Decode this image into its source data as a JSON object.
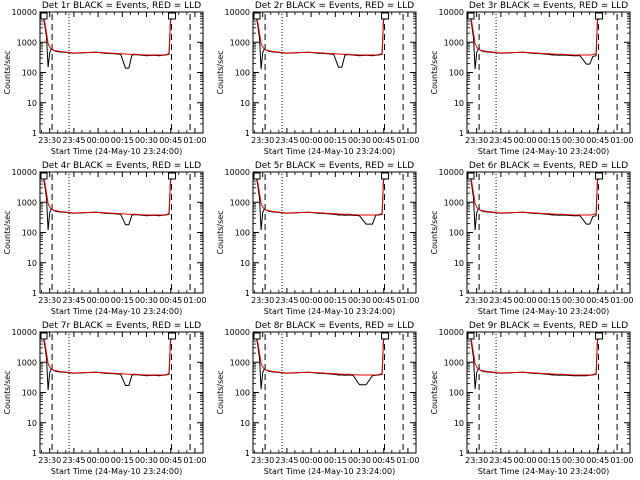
{
  "window": {
    "background": "#ffffff",
    "foreground": "#000000"
  },
  "colors": {
    "events": "#000000",
    "lld": "#e00000"
  },
  "chart_data": {
    "type": "line",
    "layout": "3x3 grid of panels",
    "scale": {
      "x": "time",
      "y": "log"
    },
    "ylim": [
      1,
      10000
    ],
    "yticks": [
      "1",
      "10",
      "100",
      "1000",
      "10000"
    ],
    "xlim": [
      "23:24",
      "01:05"
    ],
    "xticks": [
      "23:30",
      "23:45",
      "00:00",
      "00:15",
      "00:30",
      "00:45",
      "01:00"
    ],
    "xtick_positions_min": [
      6,
      21,
      36,
      51,
      66,
      81,
      96
    ],
    "xlabel": "Start Time (24-May-10 23:24:00)",
    "ylabel": "Counts/sec",
    "legend": "in title",
    "vertical_markers": [
      {
        "style": "dashed",
        "t_min": 7.5
      },
      {
        "style": "dotted",
        "t_min": 18
      },
      {
        "style": "dashed",
        "t_min": 81.5
      },
      {
        "style": "dashed",
        "t_min": 93
      }
    ],
    "series_x_min": [
      0,
      1,
      2,
      3,
      4,
      5,
      6,
      7,
      8,
      10,
      12,
      15,
      18,
      21,
      25,
      30,
      35,
      40,
      45,
      50,
      53,
      55,
      57,
      59,
      62,
      66,
      70,
      74,
      76,
      78,
      80,
      81,
      82
    ],
    "panels": [
      {
        "title": "Det 1r BLACK = Events, RED = LLD",
        "series": [
          {
            "name": "Events",
            "color": "#000000",
            "values": [
              9500,
              9000,
              7500,
              3500,
              1500,
              150,
              450,
              600,
              560,
              500,
              480,
              470,
              450,
              430,
              440,
              460,
              470,
              430,
              420,
              400,
              140,
              140,
              380,
              390,
              380,
              360,
              370,
              360,
              370,
              380,
              400,
              8000,
              9500
            ]
          },
          {
            "name": "LLD",
            "color": "#e00000",
            "values": [
              9800,
              9500,
              8000,
              4500,
              2000,
              900,
              700,
              600,
              560,
              520,
              500,
              480,
              460,
              440,
              450,
              460,
              470,
              450,
              430,
              420,
              410,
              400,
              400,
              400,
              390,
              380,
              380,
              380,
              380,
              390,
              420,
              9000,
              9800
            ]
          }
        ]
      },
      {
        "title": "Det 2r BLACK = Events, RED = LLD",
        "series": [
          {
            "name": "Events",
            "color": "#000000",
            "values": [
              9500,
              9000,
              7500,
              3500,
              1400,
              130,
              450,
              600,
              560,
              500,
              480,
              470,
              450,
              430,
              440,
              460,
              470,
              430,
              420,
              400,
              150,
              150,
              380,
              390,
              380,
              360,
              370,
              360,
              370,
              380,
              400,
              8000,
              9500
            ]
          },
          {
            "name": "LLD",
            "color": "#e00000",
            "values": [
              9800,
              9500,
              8000,
              4500,
              2000,
              900,
              700,
              600,
              560,
              520,
              500,
              480,
              460,
              440,
              450,
              460,
              470,
              450,
              430,
              420,
              410,
              400,
              400,
              400,
              390,
              380,
              380,
              380,
              380,
              390,
              420,
              9000,
              9800
            ]
          }
        ]
      },
      {
        "title": "Det 3r BLACK = Events, RED = LLD",
        "series": [
          {
            "name": "Events",
            "color": "#000000",
            "values": [
              9500,
              9000,
              7500,
              3500,
              1400,
              130,
              450,
              600,
              560,
              500,
              480,
              470,
              450,
              430,
              440,
              460,
              470,
              430,
              420,
              400,
              380,
              380,
              370,
              380,
              370,
              360,
              360,
              190,
              190,
              340,
              360,
              8000,
              9500
            ]
          },
          {
            "name": "LLD",
            "color": "#e00000",
            "values": [
              9800,
              9500,
              8000,
              4500,
              2000,
              900,
              700,
              600,
              560,
              520,
              500,
              480,
              460,
              440,
              450,
              460,
              470,
              450,
              430,
              420,
              410,
              400,
              400,
              400,
              390,
              380,
              380,
              380,
              380,
              390,
              420,
              9000,
              9800
            ]
          }
        ]
      },
      {
        "title": "Det 4r BLACK = Events, RED = LLD",
        "series": [
          {
            "name": "Events",
            "color": "#000000",
            "values": [
              9500,
              9000,
              7500,
              3500,
              1400,
              120,
              450,
              600,
              560,
              500,
              480,
              470,
              450,
              430,
              440,
              460,
              470,
              430,
              420,
              400,
              180,
              180,
              380,
              390,
              380,
              360,
              370,
              360,
              370,
              380,
              400,
              8000,
              9500
            ]
          },
          {
            "name": "LLD",
            "color": "#e00000",
            "values": [
              9800,
              9500,
              8000,
              4500,
              2000,
              900,
              700,
              600,
              560,
              520,
              500,
              480,
              460,
              440,
              450,
              460,
              470,
              450,
              430,
              420,
              410,
              400,
              400,
              400,
              390,
              380,
              380,
              380,
              380,
              390,
              420,
              9000,
              9800
            ]
          }
        ]
      },
      {
        "title": "Det 5r BLACK = Events, RED = LLD",
        "series": [
          {
            "name": "Events",
            "color": "#000000",
            "values": [
              9500,
              9000,
              7500,
              3500,
              1400,
              120,
              450,
              600,
              560,
              500,
              480,
              470,
              450,
              430,
              440,
              460,
              470,
              430,
              420,
              400,
              380,
              380,
              370,
              380,
              370,
              360,
              190,
              190,
              370,
              380,
              400,
              8000,
              9500
            ]
          },
          {
            "name": "LLD",
            "color": "#e00000",
            "values": [
              9800,
              9500,
              8000,
              4500,
              2000,
              900,
              700,
              600,
              560,
              520,
              500,
              480,
              460,
              440,
              450,
              460,
              470,
              450,
              430,
              420,
              410,
              400,
              400,
              400,
              390,
              380,
              380,
              380,
              380,
              390,
              420,
              9000,
              9800
            ]
          }
        ]
      },
      {
        "title": "Det 6r BLACK = Events, RED = LLD",
        "series": [
          {
            "name": "Events",
            "color": "#000000",
            "values": [
              9500,
              9000,
              7500,
              3500,
              1400,
              120,
              450,
              600,
              560,
              500,
              480,
              470,
              450,
              430,
              440,
              460,
              470,
              430,
              420,
              400,
              380,
              380,
              370,
              380,
              370,
              360,
              360,
              190,
              190,
              340,
              360,
              8000,
              9500
            ]
          },
          {
            "name": "LLD",
            "color": "#e00000",
            "values": [
              9800,
              9500,
              8000,
              4500,
              2000,
              900,
              700,
              600,
              560,
              520,
              500,
              480,
              460,
              440,
              450,
              460,
              470,
              450,
              430,
              420,
              410,
              400,
              400,
              400,
              390,
              380,
              380,
              380,
              380,
              390,
              420,
              9000,
              9800
            ]
          }
        ]
      },
      {
        "title": "Det 7r BLACK = Events, RED = LLD",
        "series": [
          {
            "name": "Events",
            "color": "#000000",
            "values": [
              9500,
              9000,
              7500,
              3500,
              1400,
              120,
              450,
              600,
              560,
              500,
              480,
              470,
              450,
              430,
              440,
              460,
              470,
              430,
              420,
              400,
              170,
              170,
              380,
              390,
              380,
              360,
              370,
              360,
              370,
              380,
              400,
              8000,
              9500
            ]
          },
          {
            "name": "LLD",
            "color": "#e00000",
            "values": [
              9800,
              9500,
              8000,
              4500,
              2000,
              900,
              700,
              600,
              560,
              520,
              500,
              480,
              460,
              440,
              450,
              460,
              470,
              450,
              430,
              420,
              410,
              400,
              400,
              400,
              390,
              380,
              380,
              380,
              380,
              390,
              420,
              9000,
              9800
            ]
          }
        ]
      },
      {
        "title": "Det 8r BLACK = Events, RED = LLD",
        "series": [
          {
            "name": "Events",
            "color": "#000000",
            "values": [
              9500,
              9000,
              7500,
              3500,
              1400,
              130,
              450,
              600,
              560,
              500,
              480,
              470,
              450,
              430,
              440,
              460,
              470,
              430,
              420,
              400,
              380,
              380,
              370,
              380,
              370,
              180,
              180,
              360,
              370,
              380,
              400,
              8000,
              9500
            ]
          },
          {
            "name": "LLD",
            "color": "#e00000",
            "values": [
              9800,
              9500,
              8000,
              4500,
              2000,
              900,
              700,
              600,
              560,
              520,
              500,
              480,
              460,
              440,
              450,
              460,
              470,
              450,
              430,
              420,
              410,
              400,
              400,
              400,
              390,
              380,
              380,
              380,
              380,
              390,
              420,
              9000,
              9800
            ]
          }
        ]
      },
      {
        "title": "Det 9r BLACK = Events, RED = LLD",
        "series": [
          {
            "name": "Events",
            "color": "#000000",
            "values": [
              9500,
              9000,
              7500,
              3500,
              1400,
              130,
              450,
              600,
              560,
              500,
              480,
              470,
              450,
              430,
              440,
              460,
              470,
              430,
              420,
              400,
              380,
              380,
              370,
              380,
              370,
              360,
              360,
              360,
              370,
              380,
              400,
              8000,
              9500
            ]
          },
          {
            "name": "LLD",
            "color": "#e00000",
            "values": [
              9800,
              9500,
              8000,
              4500,
              2000,
              900,
              700,
              600,
              560,
              520,
              500,
              480,
              460,
              440,
              450,
              460,
              470,
              450,
              430,
              420,
              410,
              400,
              400,
              400,
              390,
              380,
              380,
              380,
              380,
              390,
              420,
              9000,
              9800
            ]
          }
        ]
      }
    ]
  }
}
